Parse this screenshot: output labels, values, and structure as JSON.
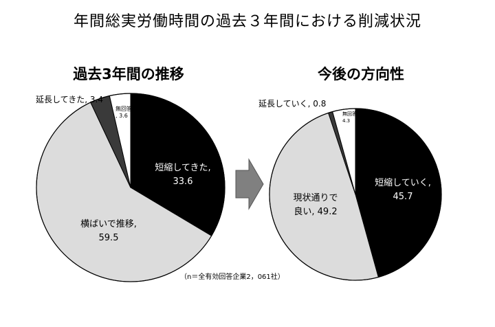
{
  "title": "年間総実労働時間の過去３年間における削減状況",
  "note": "（n＝全有効回答企業2，061社）",
  "arrow_icon": "right-arrow-icon",
  "colors": {
    "black_slice": "#000000",
    "dark_slice": "#3a3a3a",
    "white_slice": "#ffffff",
    "grey_slice": "#dcdcdc",
    "arrow": "#808080"
  },
  "chart_data": [
    {
      "type": "pie",
      "title": "過去3年間の推移",
      "slices": [
        {
          "label_lines": [
            "短縮してきた,",
            "33.6"
          ],
          "value": 33.6,
          "color": "#000000",
          "text_color": "#ffffff"
        },
        {
          "label_lines": [
            "横ばいで推移,",
            "59.5"
          ],
          "value": 59.5,
          "color": "#dcdcdc",
          "text_color": "#000000"
        },
        {
          "label_lines": [
            "延長してきた, 3.4"
          ],
          "value": 3.4,
          "color": "#3a3a3a",
          "text_color": "#000000"
        },
        {
          "label_lines": [
            "無回答",
            ", 3.6"
          ],
          "value": 3.6,
          "color": "#ffffff",
          "text_color": "#000000"
        }
      ]
    },
    {
      "type": "pie",
      "title": "今後の方向性",
      "slices": [
        {
          "label_lines": [
            "短縮していく,",
            "45.7"
          ],
          "value": 45.7,
          "color": "#000000",
          "text_color": "#ffffff"
        },
        {
          "label_lines": [
            "現状通りで",
            "良い, 49.2"
          ],
          "value": 49.2,
          "color": "#dcdcdc",
          "text_color": "#000000"
        },
        {
          "label_lines": [
            "延長していく, 0.8"
          ],
          "value": 0.8,
          "color": "#3a3a3a",
          "text_color": "#000000"
        },
        {
          "label_lines": [
            "無回答",
            "4.3"
          ],
          "value": 4.3,
          "color": "#ffffff",
          "text_color": "#000000"
        }
      ]
    }
  ]
}
